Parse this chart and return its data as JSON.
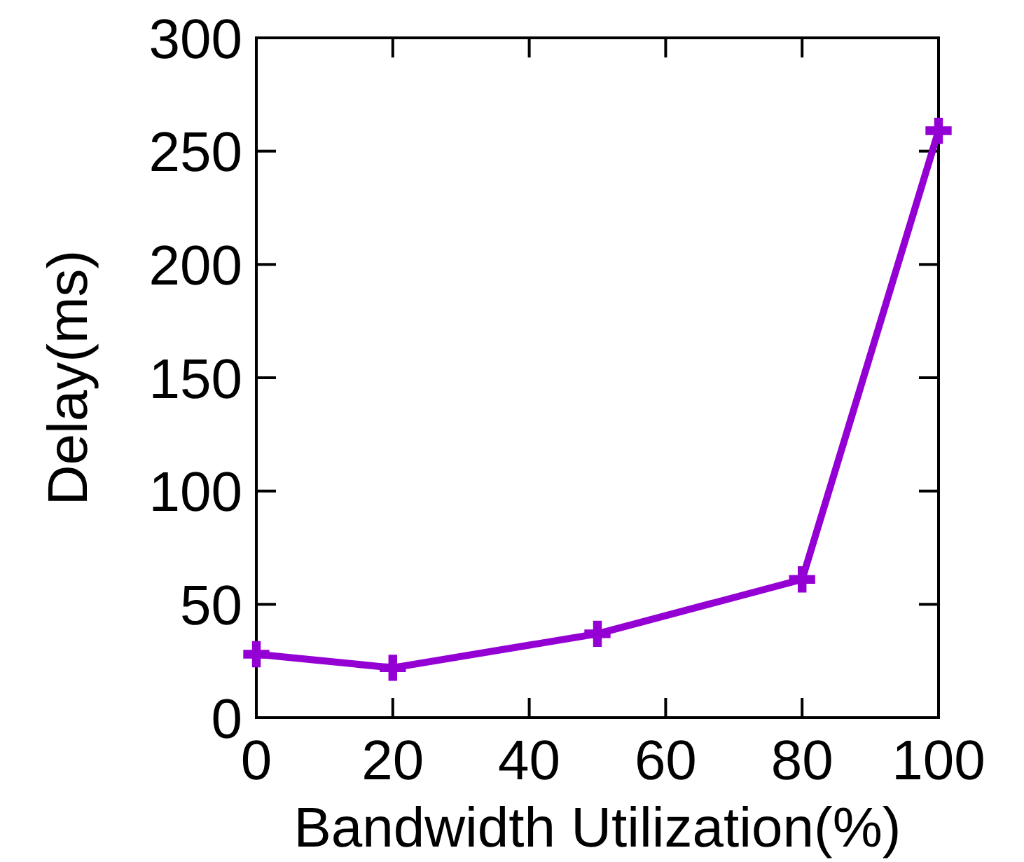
{
  "chart_data": {
    "type": "line",
    "xlabel": "Bandwidth Utilization(%)",
    "ylabel": "Delay(ms)",
    "x": [
      0,
      20,
      50,
      80,
      100
    ],
    "series": [
      {
        "color": "#9400d3",
        "values": [
          28,
          22,
          37,
          61,
          259
        ]
      }
    ],
    "xlim": [
      0,
      100
    ],
    "xticks": [
      0,
      20,
      40,
      60,
      80,
      100
    ],
    "ylim": [
      0,
      300
    ],
    "yticks": [
      0,
      50,
      100,
      150,
      200,
      250,
      300
    ],
    "grid": false,
    "marker": "cross",
    "line_style": "solid"
  }
}
